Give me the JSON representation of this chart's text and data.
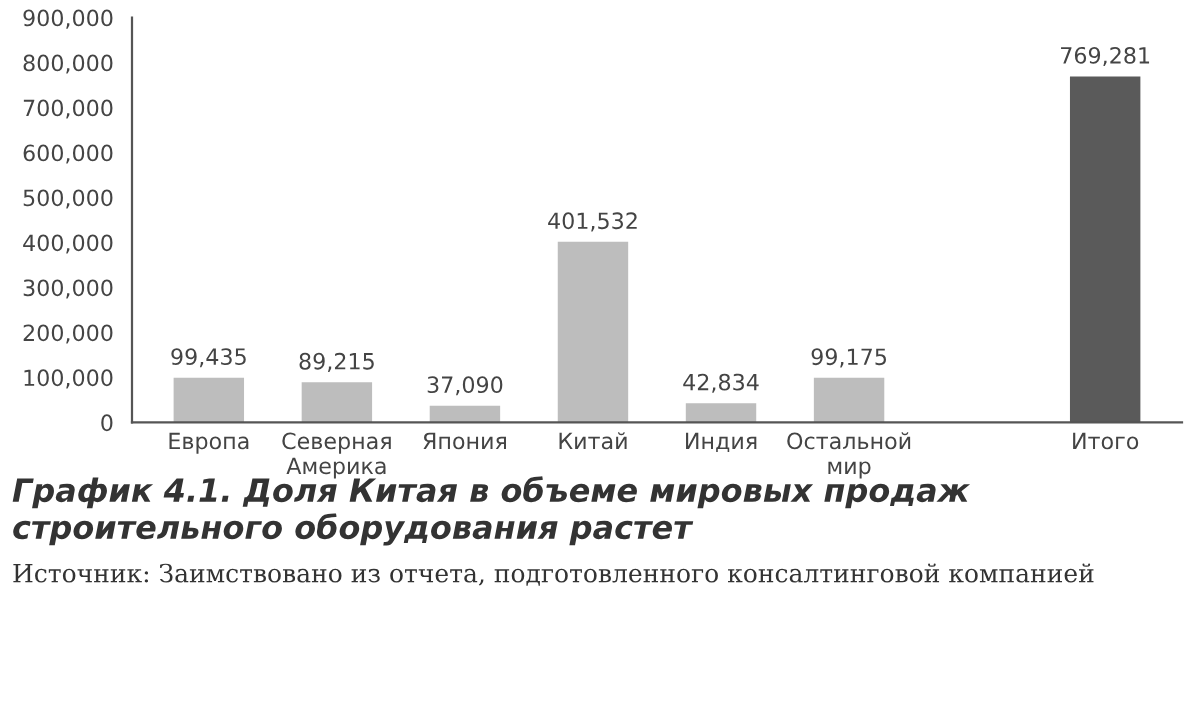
{
  "chart_data": {
    "type": "bar",
    "title": "График 4.1. Доля Китая в объеме мировых продаж строительного оборудования растет",
    "categories": [
      "Европа",
      "Северная\nАмерика",
      "Япония",
      "Китай",
      "Индия",
      "Остальной\nмир",
      null,
      "Итого"
    ],
    "values": [
      99435,
      89215,
      37090,
      401532,
      42834,
      99175,
      null,
      769281
    ],
    "value_labels": [
      "99,435",
      "89,215",
      "37,090",
      "401,532",
      "42,834",
      "99,175",
      null,
      "769,281"
    ],
    "colors": [
      "#bdbdbd",
      "#bdbdbd",
      "#bdbdbd",
      "#bdbdbd",
      "#bdbdbd",
      "#bdbdbd",
      "#bdbdbd",
      "#5a5a5a"
    ],
    "ylim": [
      0,
      900000
    ],
    "yticks": [
      {
        "value": 0,
        "label": "0"
      },
      {
        "value": 100000,
        "label": "100,000"
      },
      {
        "value": 200000,
        "label": "200,000"
      },
      {
        "value": 300000,
        "label": "300,000"
      },
      {
        "value": 400000,
        "label": "400,000"
      },
      {
        "value": 500000,
        "label": "500,000"
      },
      {
        "value": 600000,
        "label": "600,000"
      },
      {
        "value": 700000,
        "label": "700,000"
      },
      {
        "value": 800000,
        "label": "800,000"
      },
      {
        "value": 900000,
        "label": "900,000"
      }
    ],
    "grid": false,
    "annotations": [
      "Источник: Заимствовано из отчета, подготовленного консалтинговой компанией"
    ]
  }
}
